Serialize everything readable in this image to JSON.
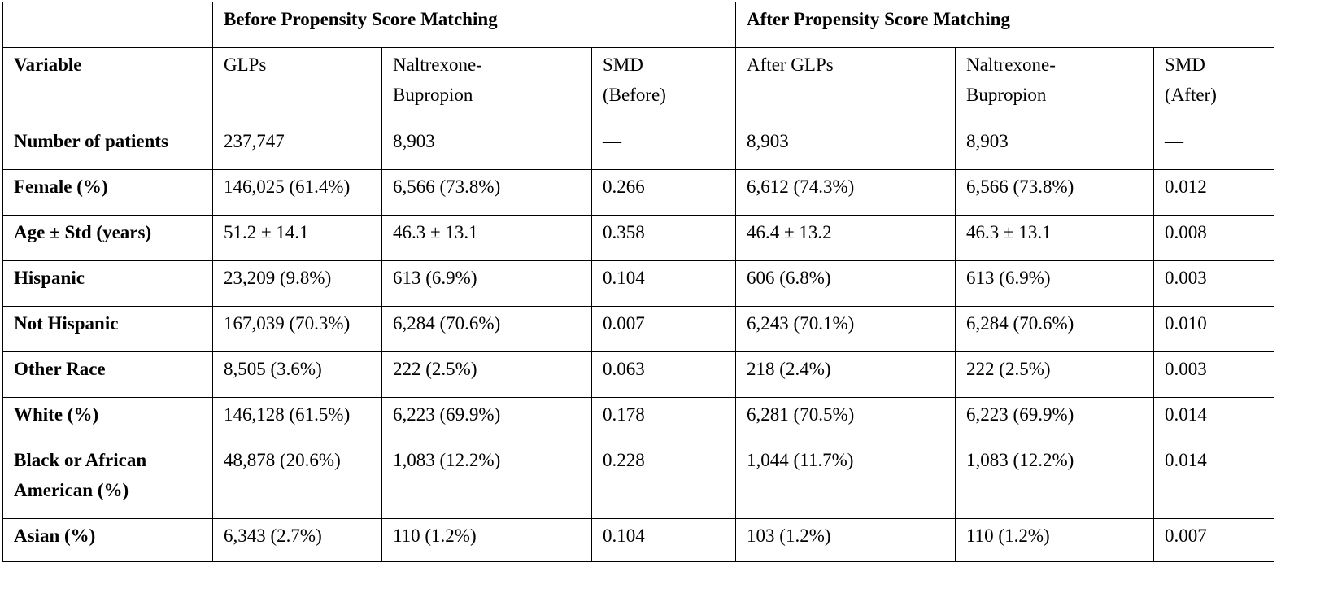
{
  "groups": {
    "before": "Before Propensity Score Matching",
    "after": "After Propensity Score Matching"
  },
  "headers": {
    "variable": "Variable",
    "glps": "GLPs",
    "nb_before": "Naltrexone-\nBupropion",
    "smd_before": "SMD\n(Before)",
    "after_glps": "After GLPs",
    "nb_after": "Naltrexone-\nBupropion",
    "smd_after": "SMD\n(After)"
  },
  "rows": [
    {
      "variable": "Number of patients",
      "glps": "237,747",
      "nb_before": "8,903",
      "smd_before": "—",
      "after_glps": "8,903",
      "nb_after": "8,903",
      "smd_after": "—"
    },
    {
      "variable": "Female (%)",
      "glps": "146,025 (61.4%)",
      "nb_before": "6,566 (73.8%)",
      "smd_before": "0.266",
      "after_glps": "6,612 (74.3%)",
      "nb_after": "6,566 (73.8%)",
      "smd_after": "0.012"
    },
    {
      "variable": "Age ± Std (years)",
      "glps": "51.2 ± 14.1",
      "nb_before": "46.3 ± 13.1",
      "smd_before": "0.358",
      "after_glps": "46.4 ± 13.2",
      "nb_after": "46.3 ± 13.1",
      "smd_after": "0.008"
    },
    {
      "variable": "Hispanic",
      "glps": "23,209 (9.8%)",
      "nb_before": "613 (6.9%)",
      "smd_before": "0.104",
      "after_glps": "606 (6.8%)",
      "nb_after": "613 (6.9%)",
      "smd_after": "0.003"
    },
    {
      "variable": "Not Hispanic",
      "glps": "167,039 (70.3%)",
      "nb_before": "6,284 (70.6%)",
      "smd_before": "0.007",
      "after_glps": "6,243 (70.1%)",
      "nb_after": "6,284 (70.6%)",
      "smd_after": "0.010"
    },
    {
      "variable": "Other Race",
      "glps": "8,505 (3.6%)",
      "nb_before": "222 (2.5%)",
      "smd_before": "0.063",
      "after_glps": "218 (2.4%)",
      "nb_after": "222 (2.5%)",
      "smd_after": "0.003"
    },
    {
      "variable": "White (%)",
      "glps": "146,128 (61.5%)",
      "nb_before": "6,223 (69.9%)",
      "smd_before": "0.178",
      "after_glps": "6,281 (70.5%)",
      "nb_after": "6,223 (69.9%)",
      "smd_after": "0.014"
    },
    {
      "variable": "Black or African\nAmerican (%)",
      "glps": "48,878 (20.6%)",
      "nb_before": "1,083 (12.2%)",
      "smd_before": "0.228",
      "after_glps": "1,044 (11.7%)",
      "nb_after": "1,083 (12.2%)",
      "smd_after": "0.014"
    },
    {
      "variable": "Asian (%)",
      "glps": "6,343 (2.7%)",
      "nb_before": "110 (1.2%)",
      "smd_before": "0.104",
      "after_glps": "103 (1.2%)",
      "nb_after": "110 (1.2%)",
      "smd_after": "0.007"
    }
  ]
}
